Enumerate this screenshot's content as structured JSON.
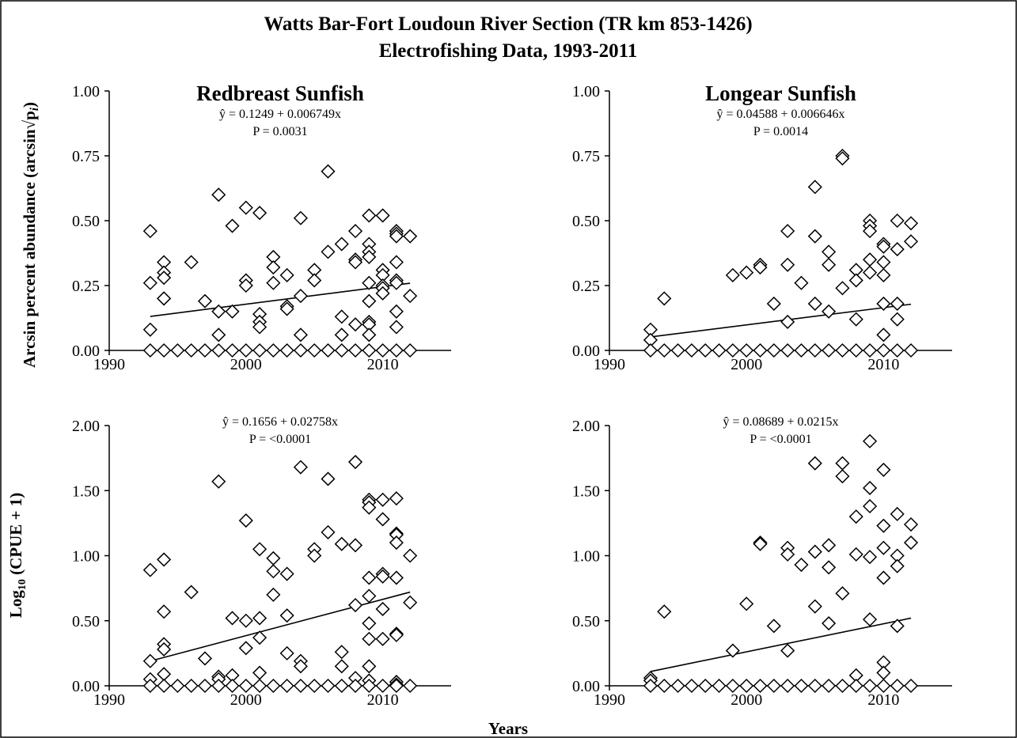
{
  "figure": {
    "title_line1": "Watts Bar-Fort Loudoun River Section (TR km 853-1426)",
    "title_line2": "Electrofishing Data, 1993-2011",
    "xlabel": "Years",
    "ylabel_top": "Arcsin percent abundance (arcsin√p",
    "ylabel_top_sub": "i",
    "ylabel_top_close": ")",
    "ylabel_bottom_prefix": "Log",
    "ylabel_bottom_sub": "10",
    "ylabel_bottom_suffix": "  (CPUE + 1)"
  },
  "chart_data": [
    {
      "type": "scatter",
      "panel": "top-left",
      "title": "Redbreast Sunfish",
      "equation": "ŷ = 0.1249 + 0.006749x",
      "p_value": "P = 0.0031",
      "xlim": [
        1990,
        2015
      ],
      "ylim": [
        0,
        1
      ],
      "x_ticks": [
        1990,
        2000,
        2010
      ],
      "y_ticks": [
        "0.00",
        "0.25",
        "0.50",
        "0.75",
        "1.00"
      ],
      "trend": {
        "x": [
          1993,
          2012
        ],
        "y": [
          0.131,
          0.259
        ]
      },
      "points": [
        [
          1993,
          0.46
        ],
        [
          1993,
          0.26
        ],
        [
          1993,
          0.08
        ],
        [
          1994,
          0.34
        ],
        [
          1994,
          0.3
        ],
        [
          1994,
          0.28
        ],
        [
          1994,
          0.2
        ],
        [
          1994,
          0.2
        ],
        [
          1996,
          0.34
        ],
        [
          1997,
          0.19
        ],
        [
          1998,
          0.6
        ],
        [
          1998,
          0.15
        ],
        [
          1998,
          0.06
        ],
        [
          1999,
          0.48
        ],
        [
          1999,
          0.15
        ],
        [
          2000,
          0.55
        ],
        [
          2000,
          0.27
        ],
        [
          2000,
          0.25
        ],
        [
          2001,
          0.53
        ],
        [
          2001,
          0.14
        ],
        [
          2001,
          0.11
        ],
        [
          2001,
          0.09
        ],
        [
          2002,
          0.36
        ],
        [
          2002,
          0.32
        ],
        [
          2002,
          0.26
        ],
        [
          2003,
          0.29
        ],
        [
          2003,
          0.17
        ],
        [
          2003,
          0.16
        ],
        [
          2004,
          0.51
        ],
        [
          2004,
          0.21
        ],
        [
          2004,
          0.06
        ],
        [
          2005,
          0.31
        ],
        [
          2005,
          0.27
        ],
        [
          2006,
          0.69
        ],
        [
          2006,
          0.38
        ],
        [
          2007,
          0.41
        ],
        [
          2007,
          0.13
        ],
        [
          2007,
          0.06
        ],
        [
          2008,
          0.46
        ],
        [
          2008,
          0.35
        ],
        [
          2008,
          0.34
        ],
        [
          2008,
          0.1
        ],
        [
          2009,
          0.52
        ],
        [
          2009,
          0.41
        ],
        [
          2009,
          0.38
        ],
        [
          2009,
          0.36
        ],
        [
          2009,
          0.26
        ],
        [
          2009,
          0.19
        ],
        [
          2009,
          0.11
        ],
        [
          2009,
          0.1
        ],
        [
          2009,
          0.06
        ],
        [
          2010,
          0.52
        ],
        [
          2010,
          0.31
        ],
        [
          2010,
          0.29
        ],
        [
          2010,
          0.25
        ],
        [
          2010,
          0.24
        ],
        [
          2010,
          0.22
        ],
        [
          2011,
          0.46
        ],
        [
          2011,
          0.45
        ],
        [
          2011,
          0.44
        ],
        [
          2011,
          0.34
        ],
        [
          2011,
          0.27
        ],
        [
          2011,
          0.26
        ],
        [
          2011,
          0.15
        ],
        [
          2011,
          0.09
        ],
        [
          2012,
          0.44
        ],
        [
          2012,
          0.21
        ],
        [
          1993,
          0
        ],
        [
          1994,
          0
        ],
        [
          1995,
          0
        ],
        [
          1996,
          0
        ],
        [
          1997,
          0
        ],
        [
          1998,
          0
        ],
        [
          1999,
          0
        ],
        [
          2000,
          0
        ],
        [
          2001,
          0
        ],
        [
          2002,
          0
        ],
        [
          2003,
          0
        ],
        [
          2004,
          0
        ],
        [
          2005,
          0
        ],
        [
          2006,
          0
        ],
        [
          2007,
          0
        ],
        [
          2008,
          0
        ],
        [
          2009,
          0
        ],
        [
          2010,
          0
        ],
        [
          2011,
          0
        ],
        [
          2012,
          0
        ]
      ]
    },
    {
      "type": "scatter",
      "panel": "top-right",
      "title": "Longear Sunfish",
      "equation": "ŷ = 0.04588 + 0.006646x",
      "p_value": "P = 0.0014",
      "xlim": [
        1990,
        2015
      ],
      "ylim": [
        0,
        1
      ],
      "x_ticks": [
        1990,
        2000,
        2010
      ],
      "y_ticks": [
        "0.00",
        "0.25",
        "0.50",
        "0.75",
        "1.00"
      ],
      "trend": {
        "x": [
          1993,
          2012
        ],
        "y": [
          0.052,
          0.178
        ]
      },
      "points": [
        [
          1993,
          0.08
        ],
        [
          1993,
          0.04
        ],
        [
          1994,
          0.2
        ],
        [
          1999,
          0.29
        ],
        [
          2000,
          0.3
        ],
        [
          2001,
          0.33
        ],
        [
          2001,
          0.32
        ],
        [
          2002,
          0.18
        ],
        [
          2003,
          0.46
        ],
        [
          2003,
          0.33
        ],
        [
          2003,
          0.11
        ],
        [
          2004,
          0.26
        ],
        [
          2005,
          0.63
        ],
        [
          2005,
          0.44
        ],
        [
          2005,
          0.18
        ],
        [
          2006,
          0.38
        ],
        [
          2006,
          0.33
        ],
        [
          2006,
          0.15
        ],
        [
          2007,
          0.75
        ],
        [
          2007,
          0.74
        ],
        [
          2007,
          0.24
        ],
        [
          2008,
          0.31
        ],
        [
          2008,
          0.27
        ],
        [
          2008,
          0.12
        ],
        [
          2009,
          0.5
        ],
        [
          2009,
          0.48
        ],
        [
          2009,
          0.46
        ],
        [
          2009,
          0.35
        ],
        [
          2009,
          0.3
        ],
        [
          2010,
          0.41
        ],
        [
          2010,
          0.4
        ],
        [
          2010,
          0.34
        ],
        [
          2010,
          0.29
        ],
        [
          2010,
          0.18
        ],
        [
          2010,
          0.06
        ],
        [
          2011,
          0.5
        ],
        [
          2011,
          0.39
        ],
        [
          2011,
          0.18
        ],
        [
          2011,
          0.12
        ],
        [
          2012,
          0.49
        ],
        [
          2012,
          0.42
        ],
        [
          1993,
          0
        ],
        [
          1994,
          0
        ],
        [
          1995,
          0
        ],
        [
          1996,
          0
        ],
        [
          1997,
          0
        ],
        [
          1998,
          0
        ],
        [
          1999,
          0
        ],
        [
          2000,
          0
        ],
        [
          2001,
          0
        ],
        [
          2002,
          0
        ],
        [
          2003,
          0
        ],
        [
          2004,
          0
        ],
        [
          2005,
          0
        ],
        [
          2006,
          0
        ],
        [
          2007,
          0
        ],
        [
          2008,
          0
        ],
        [
          2009,
          0
        ],
        [
          2010,
          0
        ],
        [
          2011,
          0
        ],
        [
          2012,
          0
        ]
      ]
    },
    {
      "type": "scatter",
      "panel": "bottom-left",
      "title": "",
      "equation": "ŷ = 0.1656 + 0.02758x",
      "p_value": "P = <0.0001",
      "xlim": [
        1990,
        2015
      ],
      "ylim": [
        0,
        2
      ],
      "x_ticks": [
        1990,
        2000,
        2010
      ],
      "y_ticks": [
        "0.00",
        "0.50",
        "1.00",
        "1.50",
        "2.00"
      ],
      "trend": {
        "x": [
          1993,
          2012
        ],
        "y": [
          0.19,
          0.72
        ]
      },
      "points": [
        [
          1993,
          0.89
        ],
        [
          1993,
          0.19
        ],
        [
          1993,
          0.05
        ],
        [
          1994,
          0.97
        ],
        [
          1994,
          0.57
        ],
        [
          1994,
          0.32
        ],
        [
          1994,
          0.28
        ],
        [
          1994,
          0.09
        ],
        [
          1996,
          0.72
        ],
        [
          1997,
          0.21
        ],
        [
          1998,
          1.57
        ],
        [
          1998,
          0.07
        ],
        [
          1998,
          0.05
        ],
        [
          1999,
          0.52
        ],
        [
          1999,
          0.08
        ],
        [
          2000,
          1.27
        ],
        [
          2000,
          0.5
        ],
        [
          2000,
          0.29
        ],
        [
          2001,
          1.05
        ],
        [
          2001,
          0.52
        ],
        [
          2001,
          0.37
        ],
        [
          2001,
          0.1
        ],
        [
          2002,
          0.98
        ],
        [
          2002,
          0.88
        ],
        [
          2002,
          0.7
        ],
        [
          2003,
          0.86
        ],
        [
          2003,
          0.54
        ],
        [
          2003,
          0.25
        ],
        [
          2004,
          1.68
        ],
        [
          2004,
          0.19
        ],
        [
          2004,
          0.15
        ],
        [
          2005,
          1.05
        ],
        [
          2005,
          1.0
        ],
        [
          2006,
          1.59
        ],
        [
          2006,
          1.18
        ],
        [
          2007,
          1.09
        ],
        [
          2007,
          0.26
        ],
        [
          2007,
          0.15
        ],
        [
          2008,
          1.72
        ],
        [
          2008,
          1.08
        ],
        [
          2008,
          0.62
        ],
        [
          2008,
          0.06
        ],
        [
          2009,
          1.43
        ],
        [
          2009,
          1.41
        ],
        [
          2009,
          1.37
        ],
        [
          2009,
          0.83
        ],
        [
          2009,
          0.69
        ],
        [
          2009,
          0.48
        ],
        [
          2009,
          0.36
        ],
        [
          2009,
          0.15
        ],
        [
          2009,
          0.04
        ],
        [
          2010,
          1.43
        ],
        [
          2010,
          1.28
        ],
        [
          2010,
          0.86
        ],
        [
          2010,
          0.84
        ],
        [
          2010,
          0.59
        ],
        [
          2010,
          0.36
        ],
        [
          2011,
          1.44
        ],
        [
          2011,
          1.17
        ],
        [
          2011,
          1.16
        ],
        [
          2011,
          1.1
        ],
        [
          2011,
          0.83
        ],
        [
          2011,
          0.4
        ],
        [
          2011,
          0.39
        ],
        [
          2011,
          0.03
        ],
        [
          2011,
          0.01
        ],
        [
          2012,
          1.0
        ],
        [
          2012,
          0.64
        ],
        [
          1993,
          0
        ],
        [
          1994,
          0
        ],
        [
          1995,
          0
        ],
        [
          1996,
          0
        ],
        [
          1997,
          0
        ],
        [
          1998,
          0
        ],
        [
          1999,
          0
        ],
        [
          2000,
          0
        ],
        [
          2001,
          0
        ],
        [
          2002,
          0
        ],
        [
          2003,
          0
        ],
        [
          2004,
          0
        ],
        [
          2005,
          0
        ],
        [
          2006,
          0
        ],
        [
          2007,
          0
        ],
        [
          2008,
          0
        ],
        [
          2009,
          0
        ],
        [
          2010,
          0
        ],
        [
          2011,
          0
        ],
        [
          2012,
          0
        ]
      ]
    },
    {
      "type": "scatter",
      "panel": "bottom-right",
      "title": "",
      "equation": "ŷ = 0.08689 + 0.0215x",
      "p_value": "P = <0.0001",
      "xlim": [
        1990,
        2015
      ],
      "ylim": [
        0,
        2
      ],
      "x_ticks": [
        1990,
        2000,
        2010
      ],
      "y_ticks": [
        "0.00",
        "0.50",
        "1.00",
        "1.50",
        "2.00"
      ],
      "trend": {
        "x": [
          1993,
          2012
        ],
        "y": [
          0.11,
          0.52
        ]
      },
      "points": [
        [
          1993,
          0.06
        ],
        [
          1993,
          0.04
        ],
        [
          1994,
          0.57
        ],
        [
          1999,
          0.27
        ],
        [
          2000,
          0.63
        ],
        [
          2001,
          1.1
        ],
        [
          2001,
          1.09
        ],
        [
          2002,
          0.46
        ],
        [
          2003,
          1.06
        ],
        [
          2003,
          1.01
        ],
        [
          2003,
          0.27
        ],
        [
          2004,
          0.93
        ],
        [
          2005,
          1.71
        ],
        [
          2005,
          1.03
        ],
        [
          2005,
          0.61
        ],
        [
          2006,
          1.08
        ],
        [
          2006,
          0.91
        ],
        [
          2006,
          0.48
        ],
        [
          2007,
          1.71
        ],
        [
          2007,
          1.61
        ],
        [
          2007,
          0.71
        ],
        [
          2008,
          1.3
        ],
        [
          2008,
          1.01
        ],
        [
          2008,
          0.08
        ],
        [
          2009,
          1.88
        ],
        [
          2009,
          1.52
        ],
        [
          2009,
          1.38
        ],
        [
          2009,
          0.99
        ],
        [
          2009,
          0.51
        ],
        [
          2010,
          1.66
        ],
        [
          2010,
          1.23
        ],
        [
          2010,
          1.06
        ],
        [
          2010,
          0.83
        ],
        [
          2010,
          0.18
        ],
        [
          2010,
          0.1
        ],
        [
          2011,
          1.32
        ],
        [
          2011,
          1.0
        ],
        [
          2011,
          0.92
        ],
        [
          2011,
          0.46
        ],
        [
          2012,
          1.24
        ],
        [
          2012,
          1.1
        ],
        [
          1993,
          0
        ],
        [
          1994,
          0
        ],
        [
          1995,
          0
        ],
        [
          1996,
          0
        ],
        [
          1997,
          0
        ],
        [
          1998,
          0
        ],
        [
          1999,
          0
        ],
        [
          2000,
          0
        ],
        [
          2001,
          0
        ],
        [
          2002,
          0
        ],
        [
          2003,
          0
        ],
        [
          2004,
          0
        ],
        [
          2005,
          0
        ],
        [
          2006,
          0
        ],
        [
          2007,
          0
        ],
        [
          2008,
          0
        ],
        [
          2009,
          0
        ],
        [
          2010,
          0
        ],
        [
          2011,
          0
        ],
        [
          2012,
          0
        ]
      ]
    }
  ]
}
